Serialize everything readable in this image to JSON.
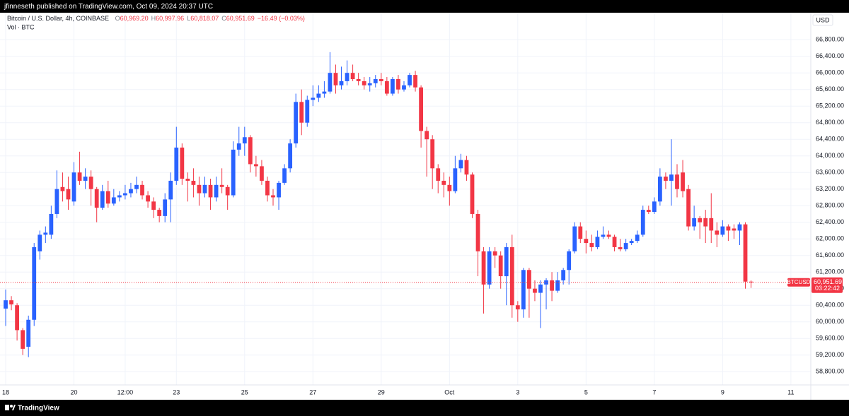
{
  "chart_data": {
    "type": "candlestick",
    "publisher_line": "jfinneseth published on TradingView.com, Oct 09, 2024 20:37 UTC",
    "title": "Bitcoin / U.S. Dollar, 4h, COINBASE",
    "ohlc_legend": [
      {
        "label": "O",
        "value": "60,969.20"
      },
      {
        "label": "H",
        "value": "60,997.96"
      },
      {
        "label": "L",
        "value": "60,818.07"
      },
      {
        "label": "C",
        "value": "60,951.69"
      }
    ],
    "change": "−16.49 (−0.03%)",
    "volume_label": "Vol · BTC",
    "currency": "USD",
    "symbol_tag": "BTCUSD",
    "last_price_label": "60,951.69",
    "countdown": "03:22:42",
    "footer": "TradingView",
    "up_color": "#2962ff",
    "down_color": "#f23645",
    "grid": true,
    "categories": [
      "18",
      null,
      null,
      null,
      null,
      null,
      null,
      null,
      null,
      null,
      null,
      null,
      "20",
      null,
      null,
      null,
      null,
      null,
      null,
      null,
      null,
      "12:00",
      null,
      null,
      null,
      null,
      null,
      null,
      null,
      null,
      "23",
      null,
      null,
      null,
      null,
      null,
      null,
      null,
      null,
      null,
      null,
      null,
      "25",
      null,
      null,
      null,
      null,
      null,
      null,
      null,
      null,
      null,
      null,
      null,
      "27",
      null,
      null,
      null,
      null,
      null,
      null,
      null,
      null,
      null,
      null,
      null,
      "29",
      null,
      null,
      null,
      null,
      null,
      null,
      null,
      null,
      null,
      null,
      null,
      "Oct",
      null,
      null,
      null,
      null,
      null,
      null,
      null,
      null,
      null,
      null,
      null,
      "3",
      null,
      null,
      null,
      null,
      null,
      null,
      null,
      null,
      null,
      null,
      null,
      "5",
      null,
      null,
      null,
      null,
      null,
      null,
      null,
      null,
      null,
      null,
      null,
      "7",
      null,
      null,
      null,
      null,
      null,
      null,
      null,
      null,
      null,
      null,
      null,
      "9",
      null,
      null,
      null,
      null,
      null,
      null,
      null,
      null,
      null,
      null,
      null,
      "11",
      null,
      null,
      null
    ],
    "open": [
      60320,
      60520,
      60400,
      59800,
      59400,
      60050,
      61700,
      62100,
      62100,
      62600,
      63250,
      63200,
      62900,
      63600,
      63400,
      63500,
      63200,
      62750,
      63150,
      62850,
      63000,
      63050,
      63100,
      63200,
      63300,
      63050,
      62900,
      62700,
      62550,
      62950,
      63400,
      64200,
      63450,
      63400,
      63300,
      63100,
      63300,
      63000,
      63300,
      63250,
      63050,
      64150,
      64300,
      64450,
      63800,
      63750,
      63400,
      63050,
      63000,
      63350,
      63700,
      64300,
      65300,
      64800,
      65350,
      65400,
      65500,
      65550,
      66000,
      65700,
      65800,
      66000,
      65850,
      65800,
      65700,
      65750,
      65850,
      65800,
      65500,
      65850,
      65600,
      65700,
      65950,
      65650,
      64600,
      64400,
      63700,
      63400,
      63300,
      63150,
      63700,
      63900,
      63550,
      62600,
      61700,
      60900,
      61700,
      61600,
      61100,
      61800,
      60400,
      60300,
      61250,
      60800,
      60700,
      60900,
      61000,
      60750,
      61000,
      61250,
      61700,
      62300,
      62000,
      61900,
      61800,
      62050,
      62100,
      62050,
      61800,
      61750,
      61900,
      61950,
      62100,
      62700,
      62650,
      62900,
      63500,
      63400,
      63550,
      63600,
      63200,
      62300,
      62500,
      62500,
      62500,
      62200,
      62100,
      62300,
      62250,
      62200,
      62350,
      60969.2,
      null,
      null,
      null,
      null,
      null,
      null,
      null,
      null,
      null,
      null
    ],
    "high": [
      60780,
      60620,
      60450,
      59850,
      60150,
      61900,
      62200,
      62300,
      62800,
      63650,
      63600,
      63500,
      63850,
      64100,
      63700,
      63650,
      63250,
      63300,
      63400,
      63200,
      63150,
      63300,
      63350,
      63500,
      63400,
      63150,
      63000,
      62750,
      63100,
      63600,
      64700,
      64300,
      63600,
      63700,
      63500,
      63500,
      63450,
      63500,
      63700,
      63300,
      64350,
      64700,
      64700,
      64500,
      64000,
      63900,
      63500,
      63200,
      63400,
      63800,
      64400,
      65500,
      65600,
      65450,
      65700,
      65700,
      65800,
      66500,
      66200,
      66150,
      66300,
      66200,
      66000,
      65900,
      65900,
      65950,
      66000,
      65900,
      65900,
      65950,
      65800,
      66000,
      66050,
      65700,
      64700,
      64500,
      63800,
      63600,
      63500,
      64000,
      64050,
      64000,
      63600,
      62700,
      61800,
      61800,
      61800,
      61700,
      61900,
      62100,
      60500,
      61300,
      61300,
      61000,
      61000,
      61050,
      61200,
      61200,
      61300,
      61750,
      62400,
      62400,
      62200,
      62100,
      62200,
      62300,
      62200,
      62100,
      62000,
      62000,
      62000,
      62200,
      62800,
      62800,
      63000,
      63700,
      63600,
      64400,
      63800,
      63900,
      63300,
      62800,
      62550,
      62700,
      63100,
      62400,
      62450,
      62350,
      62350,
      62400,
      62400,
      60997.96,
      null,
      null,
      null,
      null,
      null,
      null,
      null,
      null,
      null,
      null
    ],
    "low": [
      59900,
      60280,
      59550,
      59200,
      59150,
      59900,
      61500,
      61900,
      62000,
      62500,
      62900,
      62700,
      62800,
      63300,
      63200,
      62800,
      62400,
      62700,
      62750,
      62800,
      62900,
      62950,
      63000,
      63100,
      62950,
      62750,
      62500,
      62400,
      62400,
      62400,
      63300,
      63300,
      62900,
      63000,
      62800,
      63000,
      62700,
      62900,
      63100,
      62700,
      63000,
      64000,
      64000,
      63600,
      63500,
      63300,
      62900,
      62800,
      62700,
      63300,
      63600,
      64200,
      64500,
      64700,
      65200,
      65300,
      65400,
      65500,
      65500,
      65600,
      65700,
      65800,
      65700,
      65600,
      65550,
      65650,
      65700,
      65450,
      65450,
      65500,
      65550,
      65650,
      65550,
      64200,
      63500,
      63200,
      63100,
      63000,
      62800,
      63100,
      63600,
      63400,
      62500,
      61100,
      60200,
      60800,
      61300,
      60800,
      60400,
      60100,
      60000,
      60100,
      60100,
      60500,
      59850,
      60300,
      60500,
      60700,
      60900,
      60900,
      61650,
      61900,
      61650,
      61700,
      61750,
      62000,
      62000,
      61700,
      61700,
      61700,
      61850,
      61900,
      62050,
      62600,
      62600,
      62800,
      63200,
      62800,
      63000,
      63000,
      62200,
      62200,
      62000,
      61900,
      61900,
      61800,
      62050,
      61950,
      62000,
      61850,
      60800,
      60818.07,
      null,
      null,
      null,
      null,
      null,
      null,
      null,
      null,
      null,
      null
    ],
    "close": [
      60520,
      60420,
      59800,
      59350,
      60050,
      61800,
      62100,
      62150,
      62600,
      63200,
      63150,
      62950,
      63600,
      63400,
      63500,
      63200,
      62750,
      63150,
      62850,
      63000,
      63050,
      63100,
      63200,
      63300,
      63050,
      62900,
      62700,
      62550,
      62950,
      63400,
      64200,
      63450,
      63400,
      63300,
      63100,
      63300,
      63000,
      63300,
      63250,
      63050,
      64150,
      64300,
      64450,
      63800,
      63750,
      63400,
      63050,
      63000,
      63350,
      63700,
      64300,
      65300,
      64800,
      65350,
      65400,
      65500,
      65550,
      66000,
      65700,
      65800,
      66000,
      65850,
      65800,
      65700,
      65750,
      65850,
      65800,
      65500,
      65850,
      65600,
      65700,
      65950,
      65650,
      64600,
      64400,
      63700,
      63400,
      63300,
      63150,
      63700,
      63900,
      63550,
      62600,
      61700,
      60900,
      61700,
      61600,
      61100,
      61800,
      60400,
      60300,
      61250,
      60800,
      60700,
      60900,
      61000,
      60750,
      61000,
      61250,
      61700,
      62300,
      62000,
      61900,
      61800,
      62050,
      62100,
      62050,
      61800,
      61750,
      61900,
      61950,
      62100,
      62700,
      62650,
      62900,
      63500,
      63400,
      63550,
      63200,
      63150,
      62300,
      62500,
      62400,
      62300,
      62200,
      62100,
      62300,
      62200,
      62200,
      62350,
      60969.2,
      60951.69,
      null,
      null,
      null,
      null,
      null,
      null,
      null,
      null,
      null,
      null
    ],
    "ylim": [
      58480,
      67450
    ],
    "yticks": [
      {
        "value": 58800,
        "label": "58,800.00"
      },
      {
        "value": 59200,
        "label": "59,200.00"
      },
      {
        "value": 59600,
        "label": "59,600.00"
      },
      {
        "value": 60000,
        "label": "60,000.00"
      },
      {
        "value": 60400,
        "label": "60,400.00"
      },
      {
        "value": 60800,
        "label": "60,800.00"
      },
      {
        "value": 61200,
        "label": "61,200.00"
      },
      {
        "value": 61600,
        "label": "61,600.00"
      },
      {
        "value": 62000,
        "label": "62,000.00"
      },
      {
        "value": 62400,
        "label": "62,400.00"
      },
      {
        "value": 62800,
        "label": "62,800.00"
      },
      {
        "value": 63200,
        "label": "63,200.00"
      },
      {
        "value": 63600,
        "label": "63,600.00"
      },
      {
        "value": 64000,
        "label": "64,000.00"
      },
      {
        "value": 64400,
        "label": "64,400.00"
      },
      {
        "value": 64800,
        "label": "64,800.00"
      },
      {
        "value": 65200,
        "label": "65,200.00"
      },
      {
        "value": 65600,
        "label": "65,600.00"
      },
      {
        "value": 66000,
        "label": "66,000.00"
      },
      {
        "value": 66400,
        "label": "66,400.00"
      },
      {
        "value": 66800,
        "label": "66,800.00"
      }
    ]
  }
}
